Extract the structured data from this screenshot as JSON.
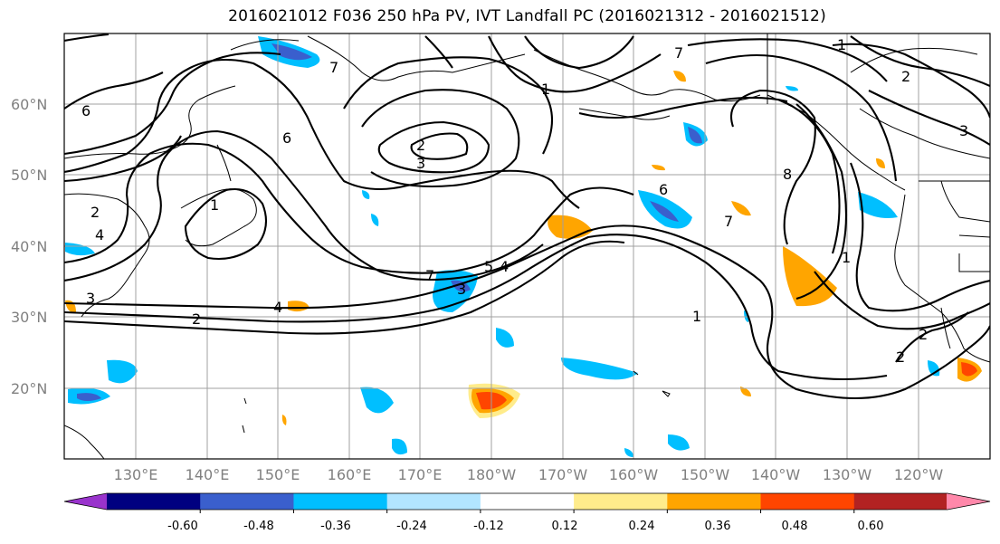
{
  "title": "2016021012 F036 250 hPa PV, IVT Landfall PC (2016021312 - 2016021512)",
  "lat_labels": [
    "60°N",
    "50°N",
    "40°N",
    "30°N",
    "20°N"
  ],
  "lon_labels": [
    "130°E",
    "140°E",
    "150°E",
    "160°E",
    "170°E",
    "180°W",
    "170°W",
    "160°W",
    "150°W",
    "140°W",
    "130°W",
    "120°W"
  ],
  "colorbar": {
    "colors": [
      "#9933cc",
      "#000080",
      "#3a5fcd",
      "#00bfff",
      "#b2e5ff",
      "#ffffff",
      "#ffec8b",
      "#ffa500",
      "#ff4500",
      "#b22222",
      "#ff88aa"
    ],
    "tick_labels": [
      "-0.60",
      "-0.48",
      "-0.36",
      "-0.24",
      "-0.12",
      "0.12",
      "0.24",
      "0.36",
      "0.48",
      "0.60"
    ]
  },
  "contour_labels": [
    "1",
    "2",
    "3",
    "4",
    "5",
    "6",
    "7",
    "8"
  ]
}
